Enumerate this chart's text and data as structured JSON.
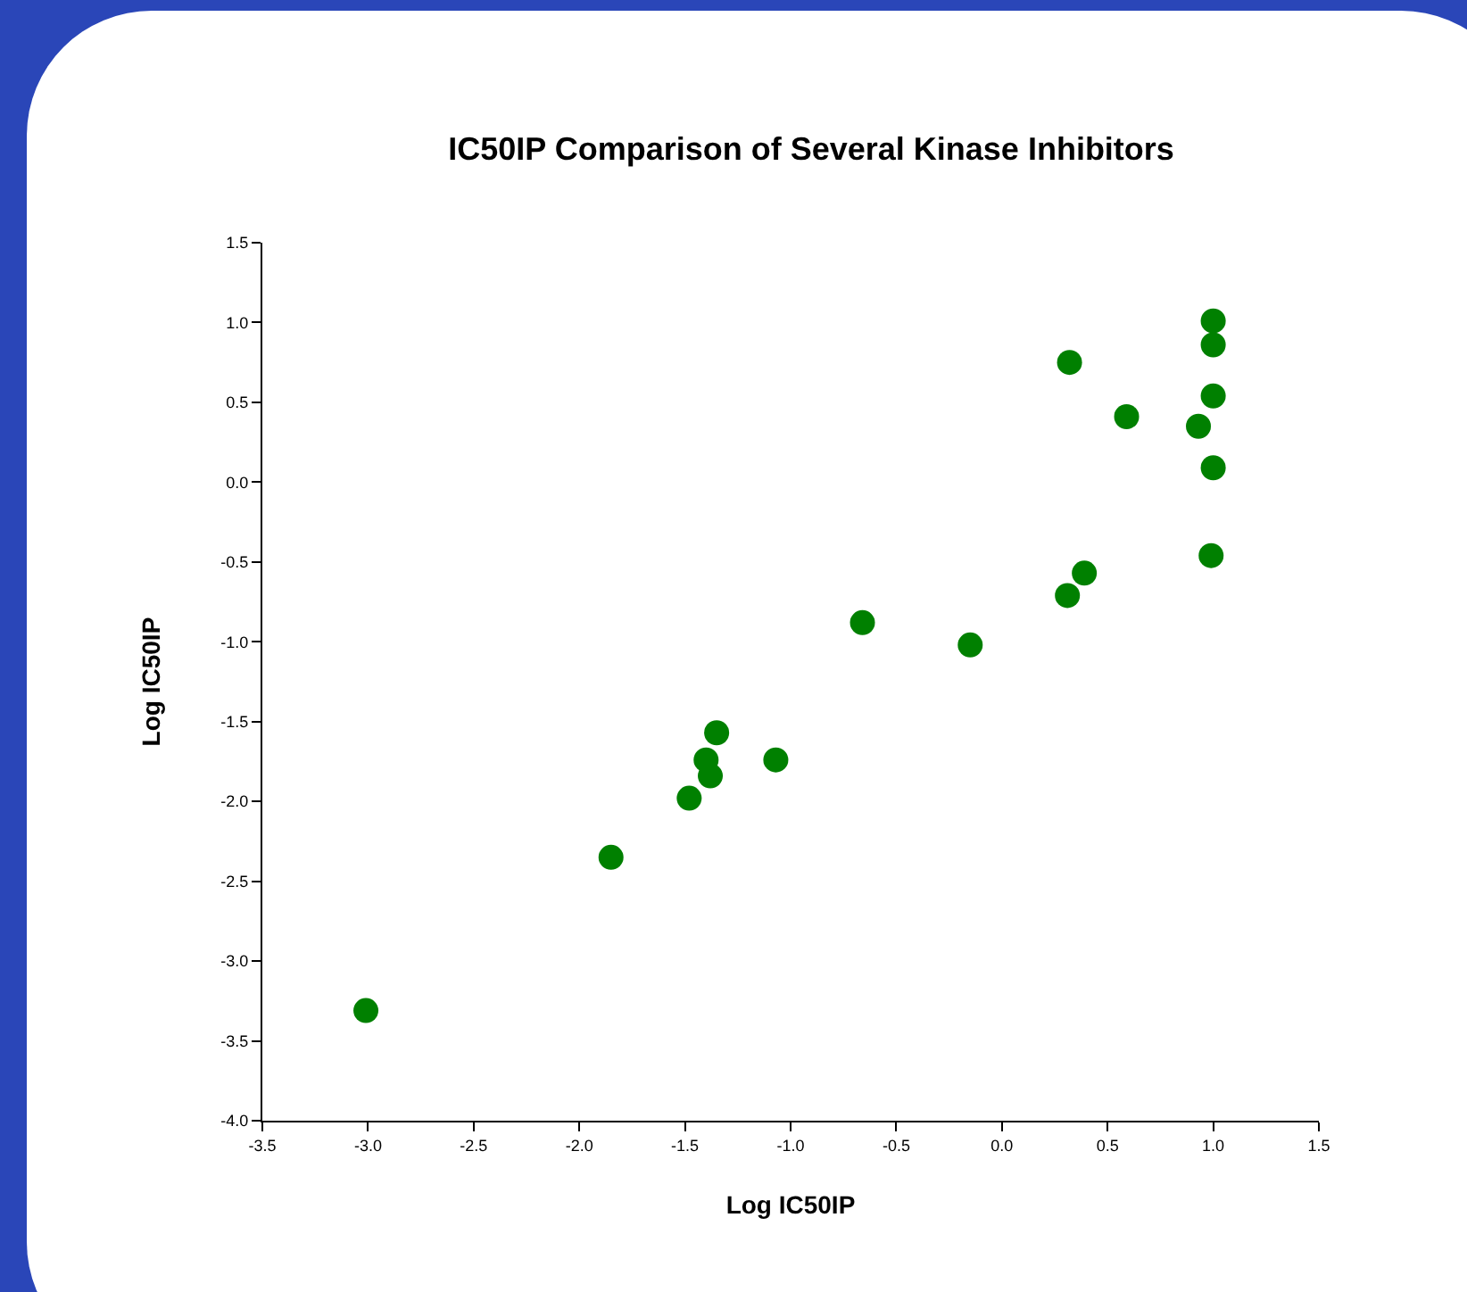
{
  "chart_data": {
    "type": "scatter",
    "title": "IC50IP Comparison of Several Kinase Inhibitors",
    "xlabel": "Log IC50IP",
    "ylabel": "Log IC50IP",
    "x": [
      -3.01,
      -1.85,
      -1.48,
      -1.38,
      -1.4,
      -1.35,
      -1.07,
      -0.66,
      -0.15,
      0.31,
      0.39,
      0.99,
      0.32,
      0.59,
      0.93,
      1.0,
      1.0,
      1.0,
      1.0
    ],
    "series": [
      {
        "color": "#008000",
        "values": [
          -3.31,
          -2.35,
          -1.98,
          -1.84,
          -1.74,
          -1.57,
          -1.74,
          -0.88,
          -1.02,
          -0.71,
          -0.57,
          -0.46,
          0.75,
          0.41,
          0.35,
          0.54,
          0.86,
          1.01,
          0.09
        ]
      }
    ],
    "xlim": [
      -3.5,
      1.5
    ],
    "xticks": [
      {
        "value": -3.5,
        "label": "-3.5"
      },
      {
        "value": -3,
        "label": "-3.0"
      },
      {
        "value": -2.5,
        "label": "-2.5"
      },
      {
        "value": -2,
        "label": "-2.0"
      },
      {
        "value": -1.5,
        "label": "-1.5"
      },
      {
        "value": -1,
        "label": "-1.0"
      },
      {
        "value": -0.5,
        "label": "-0.5"
      },
      {
        "value": 0,
        "label": "0.0"
      },
      {
        "value": 0.5,
        "label": "0.5"
      },
      {
        "value": 1,
        "label": "1.0"
      },
      {
        "value": 1.5,
        "label": "1.5"
      }
    ],
    "ylim": [
      -4,
      1.5
    ],
    "yticks": [
      {
        "value": -4,
        "label": "-4.0"
      },
      {
        "value": -3.5,
        "label": "-3.5"
      },
      {
        "value": -3,
        "label": "-3.0"
      },
      {
        "value": -2.5,
        "label": "-2.5"
      },
      {
        "value": -2,
        "label": "-2.0"
      },
      {
        "value": -1.5,
        "label": "-1.5"
      },
      {
        "value": -1,
        "label": "-1.0"
      },
      {
        "value": -0.5,
        "label": "-0.5"
      },
      {
        "value": 0,
        "label": "0.0"
      },
      {
        "value": 0.5,
        "label": "0.5"
      },
      {
        "value": 1,
        "label": "1.0"
      },
      {
        "value": 1.5,
        "label": "1.5"
      }
    ],
    "grid": false,
    "marker": "circle"
  }
}
